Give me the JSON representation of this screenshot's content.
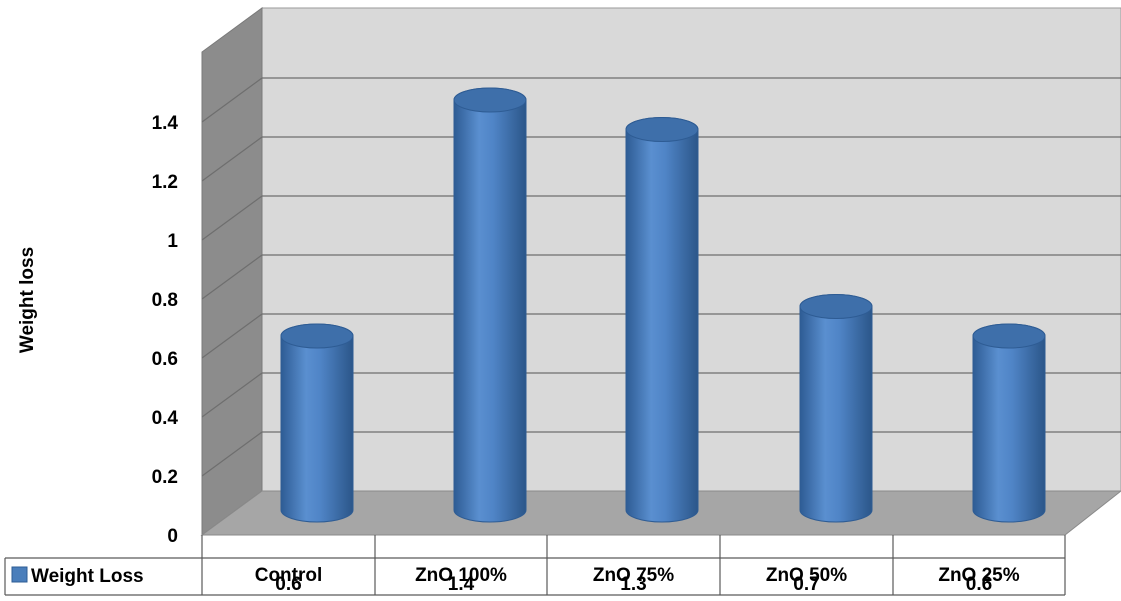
{
  "chart_data": {
    "type": "bar",
    "style": "3d-cylinder",
    "categories": [
      "Control",
      "ZnO 100%",
      "ZnO 75%",
      "ZnO 50%",
      "ZnO 25%"
    ],
    "series": [
      {
        "name": "Weight Loss",
        "values": [
          0.6,
          1.4,
          1.3,
          0.7,
          0.6
        ],
        "color": "#4A7EBB"
      }
    ],
    "value_labels": [
      "0.6",
      "1.4",
      "1.3",
      "0.7",
      "0.6"
    ],
    "ylabel": "Weight loss",
    "ylim": [
      0,
      1.4
    ],
    "yticks": [
      "0",
      "0.2",
      "0.4",
      "0.6",
      "0.8",
      "1",
      "1.2",
      "1.4"
    ],
    "grid": true,
    "legend": "data-table-below",
    "wall_color": "#D9D9D9",
    "floor_color": "#A6A6A6",
    "side_wall_color": "#8C8C8C"
  }
}
